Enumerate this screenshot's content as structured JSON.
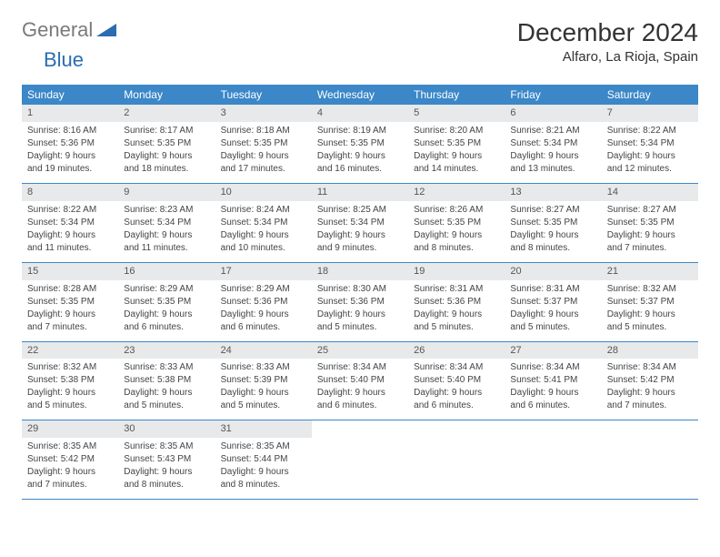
{
  "logo": {
    "gray_text": "General",
    "blue_text": "Blue"
  },
  "title": "December 2024",
  "location": "Alfaro, La Rioja, Spain",
  "colors": {
    "header_bg": "#3b87c8",
    "header_text": "#ffffff",
    "daynum_bg": "#e8e9ea",
    "border": "#3b87c8",
    "logo_gray": "#7a7a7a",
    "logo_blue": "#2a6db0"
  },
  "day_names": [
    "Sunday",
    "Monday",
    "Tuesday",
    "Wednesday",
    "Thursday",
    "Friday",
    "Saturday"
  ],
  "weeks": [
    [
      {
        "n": "1",
        "sr": "Sunrise: 8:16 AM",
        "ss": "Sunset: 5:36 PM",
        "dl": "Daylight: 9 hours and 19 minutes."
      },
      {
        "n": "2",
        "sr": "Sunrise: 8:17 AM",
        "ss": "Sunset: 5:35 PM",
        "dl": "Daylight: 9 hours and 18 minutes."
      },
      {
        "n": "3",
        "sr": "Sunrise: 8:18 AM",
        "ss": "Sunset: 5:35 PM",
        "dl": "Daylight: 9 hours and 17 minutes."
      },
      {
        "n": "4",
        "sr": "Sunrise: 8:19 AM",
        "ss": "Sunset: 5:35 PM",
        "dl": "Daylight: 9 hours and 16 minutes."
      },
      {
        "n": "5",
        "sr": "Sunrise: 8:20 AM",
        "ss": "Sunset: 5:35 PM",
        "dl": "Daylight: 9 hours and 14 minutes."
      },
      {
        "n": "6",
        "sr": "Sunrise: 8:21 AM",
        "ss": "Sunset: 5:34 PM",
        "dl": "Daylight: 9 hours and 13 minutes."
      },
      {
        "n": "7",
        "sr": "Sunrise: 8:22 AM",
        "ss": "Sunset: 5:34 PM",
        "dl": "Daylight: 9 hours and 12 minutes."
      }
    ],
    [
      {
        "n": "8",
        "sr": "Sunrise: 8:22 AM",
        "ss": "Sunset: 5:34 PM",
        "dl": "Daylight: 9 hours and 11 minutes."
      },
      {
        "n": "9",
        "sr": "Sunrise: 8:23 AM",
        "ss": "Sunset: 5:34 PM",
        "dl": "Daylight: 9 hours and 11 minutes."
      },
      {
        "n": "10",
        "sr": "Sunrise: 8:24 AM",
        "ss": "Sunset: 5:34 PM",
        "dl": "Daylight: 9 hours and 10 minutes."
      },
      {
        "n": "11",
        "sr": "Sunrise: 8:25 AM",
        "ss": "Sunset: 5:34 PM",
        "dl": "Daylight: 9 hours and 9 minutes."
      },
      {
        "n": "12",
        "sr": "Sunrise: 8:26 AM",
        "ss": "Sunset: 5:35 PM",
        "dl": "Daylight: 9 hours and 8 minutes."
      },
      {
        "n": "13",
        "sr": "Sunrise: 8:27 AM",
        "ss": "Sunset: 5:35 PM",
        "dl": "Daylight: 9 hours and 8 minutes."
      },
      {
        "n": "14",
        "sr": "Sunrise: 8:27 AM",
        "ss": "Sunset: 5:35 PM",
        "dl": "Daylight: 9 hours and 7 minutes."
      }
    ],
    [
      {
        "n": "15",
        "sr": "Sunrise: 8:28 AM",
        "ss": "Sunset: 5:35 PM",
        "dl": "Daylight: 9 hours and 7 minutes."
      },
      {
        "n": "16",
        "sr": "Sunrise: 8:29 AM",
        "ss": "Sunset: 5:35 PM",
        "dl": "Daylight: 9 hours and 6 minutes."
      },
      {
        "n": "17",
        "sr": "Sunrise: 8:29 AM",
        "ss": "Sunset: 5:36 PM",
        "dl": "Daylight: 9 hours and 6 minutes."
      },
      {
        "n": "18",
        "sr": "Sunrise: 8:30 AM",
        "ss": "Sunset: 5:36 PM",
        "dl": "Daylight: 9 hours and 5 minutes."
      },
      {
        "n": "19",
        "sr": "Sunrise: 8:31 AM",
        "ss": "Sunset: 5:36 PM",
        "dl": "Daylight: 9 hours and 5 minutes."
      },
      {
        "n": "20",
        "sr": "Sunrise: 8:31 AM",
        "ss": "Sunset: 5:37 PM",
        "dl": "Daylight: 9 hours and 5 minutes."
      },
      {
        "n": "21",
        "sr": "Sunrise: 8:32 AM",
        "ss": "Sunset: 5:37 PM",
        "dl": "Daylight: 9 hours and 5 minutes."
      }
    ],
    [
      {
        "n": "22",
        "sr": "Sunrise: 8:32 AM",
        "ss": "Sunset: 5:38 PM",
        "dl": "Daylight: 9 hours and 5 minutes."
      },
      {
        "n": "23",
        "sr": "Sunrise: 8:33 AM",
        "ss": "Sunset: 5:38 PM",
        "dl": "Daylight: 9 hours and 5 minutes."
      },
      {
        "n": "24",
        "sr": "Sunrise: 8:33 AM",
        "ss": "Sunset: 5:39 PM",
        "dl": "Daylight: 9 hours and 5 minutes."
      },
      {
        "n": "25",
        "sr": "Sunrise: 8:34 AM",
        "ss": "Sunset: 5:40 PM",
        "dl": "Daylight: 9 hours and 6 minutes."
      },
      {
        "n": "26",
        "sr": "Sunrise: 8:34 AM",
        "ss": "Sunset: 5:40 PM",
        "dl": "Daylight: 9 hours and 6 minutes."
      },
      {
        "n": "27",
        "sr": "Sunrise: 8:34 AM",
        "ss": "Sunset: 5:41 PM",
        "dl": "Daylight: 9 hours and 6 minutes."
      },
      {
        "n": "28",
        "sr": "Sunrise: 8:34 AM",
        "ss": "Sunset: 5:42 PM",
        "dl": "Daylight: 9 hours and 7 minutes."
      }
    ],
    [
      {
        "n": "29",
        "sr": "Sunrise: 8:35 AM",
        "ss": "Sunset: 5:42 PM",
        "dl": "Daylight: 9 hours and 7 minutes."
      },
      {
        "n": "30",
        "sr": "Sunrise: 8:35 AM",
        "ss": "Sunset: 5:43 PM",
        "dl": "Daylight: 9 hours and 8 minutes."
      },
      {
        "n": "31",
        "sr": "Sunrise: 8:35 AM",
        "ss": "Sunset: 5:44 PM",
        "dl": "Daylight: 9 hours and 8 minutes."
      },
      {
        "n": "",
        "sr": "",
        "ss": "",
        "dl": ""
      },
      {
        "n": "",
        "sr": "",
        "ss": "",
        "dl": ""
      },
      {
        "n": "",
        "sr": "",
        "ss": "",
        "dl": ""
      },
      {
        "n": "",
        "sr": "",
        "ss": "",
        "dl": ""
      }
    ]
  ]
}
